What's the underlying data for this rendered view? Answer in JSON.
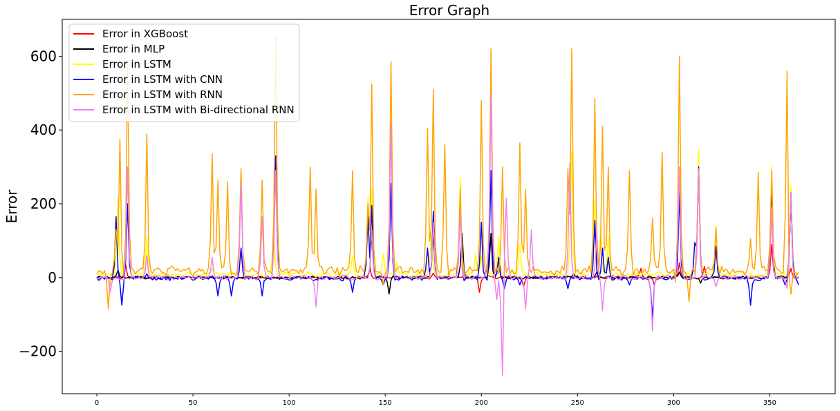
{
  "chart_data": {
    "type": "line",
    "title": "Error Graph",
    "xlabel": "",
    "ylabel": "Error",
    "xlim": [
      -18,
      384
    ],
    "ylim": [
      -315,
      700
    ],
    "x_ticks": [
      0,
      50,
      100,
      150,
      200,
      250,
      300,
      350
    ],
    "y_ticks": [
      -200,
      0,
      200,
      400,
      600
    ],
    "y_tick_labels": [
      "−200",
      "0",
      "200",
      "400",
      "600"
    ],
    "grid": false,
    "legend_position": "top-left",
    "x_count": 366,
    "base_noise": {
      "Error in XGBoost": 3,
      "Error in MLP": 3,
      "Error in LSTM": 6,
      "Error in LSTM with CNN": 5,
      "Error in LSTM with RNN": 10,
      "Error in LSTM with Bi-directional RNN": 5
    },
    "baseline_offset": {
      "Error in XGBoost": 0,
      "Error in MLP": 0,
      "Error in LSTM": 8,
      "Error in LSTM with CNN": -2,
      "Error in LSTM with RNN": 18,
      "Error in LSTM with Bi-directional RNN": 0
    },
    "series": [
      {
        "name": "Error in XGBoost",
        "color": "#ff0000",
        "points": [
          [
            15,
            35
          ],
          [
            142,
            25
          ],
          [
            175,
            12
          ],
          [
            199,
            -40
          ],
          [
            203,
            20
          ],
          [
            222,
            -25
          ],
          [
            283,
            25
          ],
          [
            290,
            -20
          ],
          [
            303,
            40
          ],
          [
            316,
            30
          ],
          [
            351,
            90
          ],
          [
            361,
            25
          ]
        ]
      },
      {
        "name": "Error in MLP",
        "color": "#000000",
        "points": [
          [
            11,
            20
          ],
          [
            143,
            120
          ],
          [
            152,
            -45
          ],
          [
            175,
            120
          ],
          [
            190,
            120
          ],
          [
            205,
            120
          ],
          [
            209,
            45
          ],
          [
            248,
            10
          ],
          [
            260,
            15
          ],
          [
            303,
            15
          ],
          [
            314,
            -15
          ],
          [
            351,
            190
          ],
          [
            361,
            230
          ]
        ]
      },
      {
        "name": "Error in LSTM",
        "color": "#ffff00",
        "points": [
          [
            11,
            215
          ],
          [
            16,
            200
          ],
          [
            26,
            110
          ],
          [
            60,
            25
          ],
          [
            75,
            70
          ],
          [
            92,
            130
          ],
          [
            133,
            60
          ],
          [
            141,
            215
          ],
          [
            143,
            240
          ],
          [
            149,
            65
          ],
          [
            156,
            40
          ],
          [
            174,
            120
          ],
          [
            189,
            270
          ],
          [
            197,
            65
          ],
          [
            200,
            60
          ],
          [
            209,
            110
          ],
          [
            220,
            90
          ],
          [
            247,
            340
          ],
          [
            259,
            210
          ],
          [
            262,
            130
          ],
          [
            266,
            110
          ],
          [
            303,
            300
          ],
          [
            313,
            350
          ],
          [
            322,
            140
          ],
          [
            351,
            305
          ],
          [
            361,
            250
          ]
        ]
      },
      {
        "name": "Error in LSTM with CNN",
        "color": "#0000ff",
        "points": [
          [
            10,
            165
          ],
          [
            13,
            -75
          ],
          [
            16,
            200
          ],
          [
            26,
            10
          ],
          [
            60,
            5
          ],
          [
            63,
            -50
          ],
          [
            70,
            -50
          ],
          [
            75,
            80
          ],
          [
            86,
            -50
          ],
          [
            93,
            330
          ],
          [
            133,
            -40
          ],
          [
            141,
            165
          ],
          [
            143,
            195
          ],
          [
            149,
            -20
          ],
          [
            153,
            255
          ],
          [
            172,
            80
          ],
          [
            175,
            180
          ],
          [
            189,
            215
          ],
          [
            200,
            150
          ],
          [
            205,
            290
          ],
          [
            209,
            55
          ],
          [
            212,
            -30
          ],
          [
            220,
            -20
          ],
          [
            245,
            -30
          ],
          [
            259,
            155
          ],
          [
            263,
            80
          ],
          [
            266,
            55
          ],
          [
            277,
            -20
          ],
          [
            289,
            -110
          ],
          [
            303,
            230
          ],
          [
            311,
            95
          ],
          [
            313,
            300
          ],
          [
            322,
            85
          ],
          [
            340,
            -75
          ],
          [
            351,
            255
          ],
          [
            358,
            -20
          ],
          [
            361,
            230
          ],
          [
            365,
            -20
          ]
        ]
      },
      {
        "name": "Error in LSTM with RNN",
        "color": "#ffa500",
        "points": [
          [
            6,
            -85
          ],
          [
            10,
            130
          ],
          [
            12,
            375
          ],
          [
            16,
            580
          ],
          [
            26,
            390
          ],
          [
            60,
            335
          ],
          [
            63,
            265
          ],
          [
            68,
            260
          ],
          [
            75,
            295
          ],
          [
            86,
            265
          ],
          [
            93,
            655
          ],
          [
            111,
            300
          ],
          [
            114,
            240
          ],
          [
            133,
            290
          ],
          [
            141,
            200
          ],
          [
            143,
            525
          ],
          [
            149,
            -20
          ],
          [
            153,
            585
          ],
          [
            172,
            405
          ],
          [
            175,
            510
          ],
          [
            181,
            360
          ],
          [
            189,
            240
          ],
          [
            200,
            480
          ],
          [
            205,
            620
          ],
          [
            211,
            300
          ],
          [
            220,
            365
          ],
          [
            223,
            240
          ],
          [
            245,
            295
          ],
          [
            247,
            620
          ],
          [
            259,
            485
          ],
          [
            263,
            410
          ],
          [
            266,
            300
          ],
          [
            277,
            290
          ],
          [
            289,
            160
          ],
          [
            294,
            340
          ],
          [
            302,
            -110
          ],
          [
            303,
            600
          ],
          [
            308,
            -65
          ],
          [
            313,
            290
          ],
          [
            322,
            135
          ],
          [
            340,
            105
          ],
          [
            344,
            285
          ],
          [
            351,
            290
          ],
          [
            359,
            560
          ],
          [
            361,
            -45
          ]
        ]
      },
      {
        "name": "Error in LSTM with Bi-directional RNN",
        "color": "#ee82ee",
        "points": [
          [
            7,
            -40
          ],
          [
            16,
            300
          ],
          [
            26,
            60
          ],
          [
            60,
            55
          ],
          [
            75,
            255
          ],
          [
            86,
            165
          ],
          [
            93,
            290
          ],
          [
            114,
            -80
          ],
          [
            143,
            130
          ],
          [
            153,
            420
          ],
          [
            175,
            150
          ],
          [
            189,
            185
          ],
          [
            203,
            40
          ],
          [
            205,
            500
          ],
          [
            208,
            -60
          ],
          [
            211,
            -265
          ],
          [
            213,
            215
          ],
          [
            223,
            -85
          ],
          [
            226,
            130
          ],
          [
            246,
            310
          ],
          [
            260,
            125
          ],
          [
            263,
            -90
          ],
          [
            289,
            -145
          ],
          [
            303,
            300
          ],
          [
            313,
            295
          ],
          [
            322,
            -25
          ],
          [
            351,
            190
          ],
          [
            359,
            -30
          ],
          [
            361,
            230
          ]
        ]
      }
    ]
  }
}
